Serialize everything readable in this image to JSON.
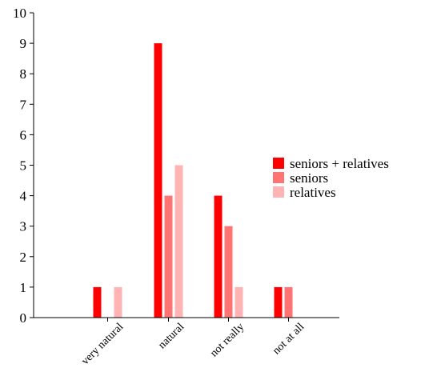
{
  "chart_data": {
    "type": "bar",
    "title": "",
    "xlabel": "",
    "ylabel": "",
    "categories": [
      "very natural",
      "natural",
      "not really",
      "not at all"
    ],
    "series": [
      {
        "name": "seniors + relatives",
        "color": "#ff0000",
        "values": [
          1,
          9,
          4,
          1
        ]
      },
      {
        "name": "seniors",
        "color": "#ff7373",
        "values": [
          0,
          4,
          3,
          1
        ]
      },
      {
        "name": "relatives",
        "color": "#ffb3b3",
        "values": [
          1,
          5,
          1,
          0
        ]
      }
    ],
    "ylim": [
      0,
      10
    ],
    "yticks": [
      "0",
      "1",
      "2",
      "3",
      "4",
      "5",
      "6",
      "7",
      "8",
      "9",
      "10"
    ],
    "grid": false,
    "legend_position": "right"
  }
}
